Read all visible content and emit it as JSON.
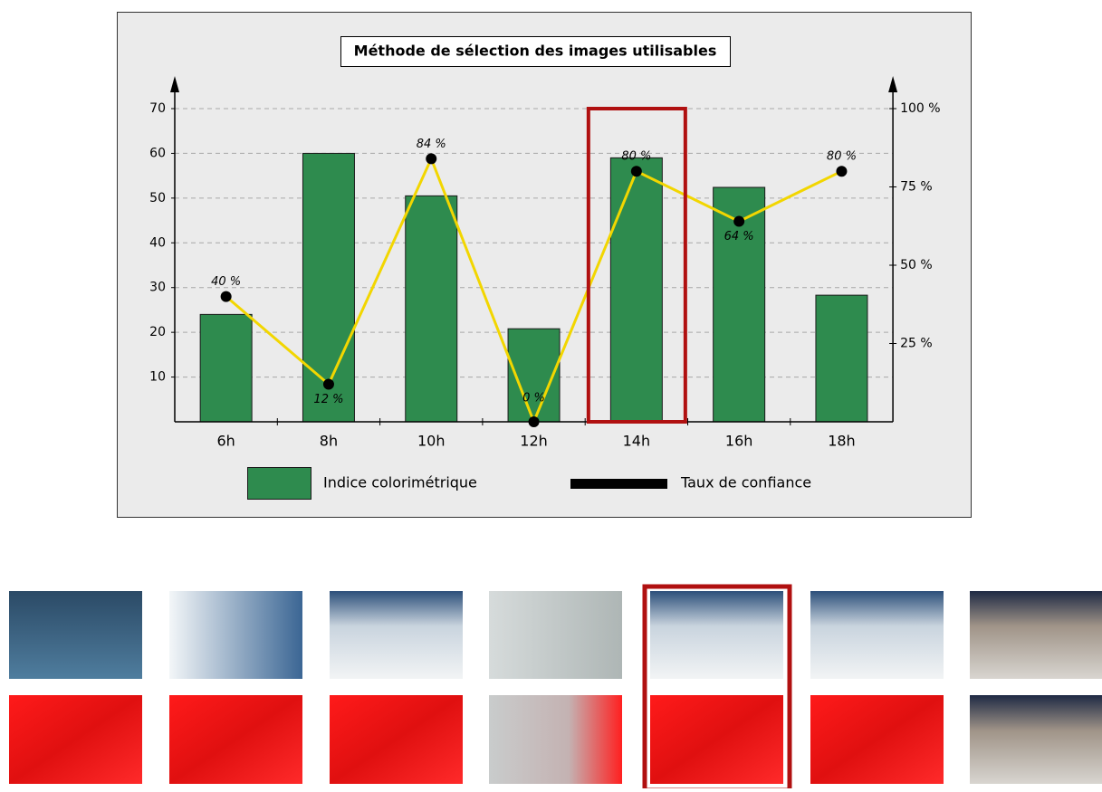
{
  "chart_data": {
    "type": "bar_line",
    "title": "Méthode de sélection des images utilisables",
    "categories": [
      "6h",
      "8h",
      "10h",
      "12h",
      "14h",
      "16h",
      "18h"
    ],
    "series": [
      {
        "name": "Indice colorimétrique",
        "color": "#2e8b4e",
        "values": [
          24,
          60,
          50.5,
          20.8,
          59,
          52.4,
          28.3
        ]
      },
      {
        "name": "Taux de confiance",
        "color": "#f2d600",
        "marker_color": "#000000",
        "legend_color": "#000000",
        "axis": "y2",
        "values": [
          40,
          12,
          84,
          0,
          80,
          64,
          80
        ],
        "value_labels": [
          "40 %",
          "12 %",
          "84 %",
          "0 %",
          "80 %",
          "64 %",
          "80 %"
        ]
      }
    ],
    "ylim": [
      0,
      70
    ],
    "yticks": [
      10,
      20,
      30,
      40,
      50,
      60,
      70
    ],
    "y2lim": [
      0,
      100
    ],
    "y2ticks": [
      {
        "value": 25,
        "label": "25 %"
      },
      {
        "value": 50,
        "label": "50 %"
      },
      {
        "value": 75,
        "label": "75 %"
      },
      {
        "value": 100,
        "label": "100 %"
      }
    ],
    "grid": true,
    "highlight_index": 4
  }
}
